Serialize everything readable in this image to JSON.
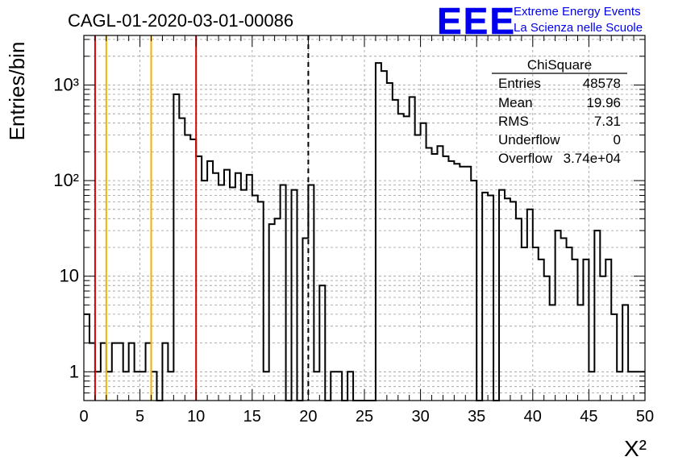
{
  "header": {
    "run_title": "CAGL-01-2020-03-01-00086",
    "logo_text": "EEE",
    "logo_line1": "Extreme Energy Events",
    "logo_line2": "La Scienza nelle Scuole"
  },
  "stats_box": {
    "title": "ChiSquare",
    "rows": [
      {
        "label": "Entries",
        "value": "48578"
      },
      {
        "label": "Mean",
        "value": "19.96"
      },
      {
        "label": "RMS",
        "value": "7.31"
      },
      {
        "label": "Underflow",
        "value": "0"
      },
      {
        "label": "Overflow",
        "value": "3.74e+04"
      }
    ]
  },
  "colors": {
    "histogram": "#000000",
    "red_cut": "#dd0000",
    "yellow_cut": "#f0b400",
    "grid": "#9a9a9a",
    "logo_blue": "#0000ee"
  },
  "chart_data": {
    "type": "bar",
    "histogram": true,
    "title": "CAGL-01-2020-03-01-00086",
    "xlabel": "X²",
    "ylabel": "Entries/bin",
    "xlim": [
      0,
      50
    ],
    "ylim": [
      0.5,
      3300
    ],
    "yscale": "log",
    "grid": true,
    "legend": "top-right",
    "bin_width": 0.5,
    "x_ticks": [
      "0",
      "5",
      "10",
      "15",
      "20",
      "25",
      "30",
      "35",
      "40",
      "45",
      "50"
    ],
    "y_ticks": [
      "1",
      "10",
      "10²",
      "10³"
    ],
    "values": [
      4,
      2,
      1,
      2,
      1,
      2,
      2,
      1,
      2,
      1,
      1,
      2,
      1,
      0,
      2,
      1,
      800,
      450,
      300,
      270,
      180,
      100,
      160,
      120,
      90,
      130,
      85,
      120,
      80,
      115,
      70,
      60,
      1,
      35,
      40,
      90,
      0,
      80,
      0,
      25,
      90,
      1,
      8,
      0,
      1,
      1,
      0,
      1,
      0,
      0,
      0,
      0,
      1700,
      1400,
      1050,
      700,
      500,
      470,
      750,
      300,
      400,
      220,
      190,
      230,
      180,
      160,
      150,
      140,
      140,
      100,
      0,
      75,
      70,
      0,
      80,
      65,
      60,
      40,
      20,
      50,
      20,
      15,
      10,
      5,
      30,
      25,
      20,
      15,
      5,
      15,
      1,
      30,
      10,
      15,
      4,
      1,
      5,
      1,
      1,
      1
    ],
    "vertical_lines": [
      {
        "x": 1,
        "style": "solid",
        "color": "red"
      },
      {
        "x": 2,
        "style": "solid",
        "color": "yellow"
      },
      {
        "x": 6,
        "style": "solid",
        "color": "yellow"
      },
      {
        "x": 10,
        "style": "solid",
        "color": "red"
      },
      {
        "x": 20,
        "style": "dashed",
        "color": "black"
      }
    ]
  }
}
